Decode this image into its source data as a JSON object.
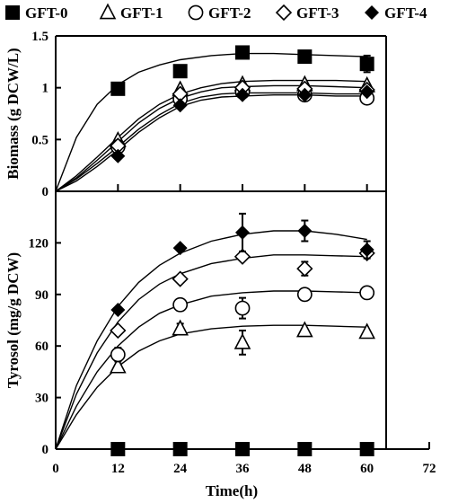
{
  "chart_data": {
    "type": "scatter",
    "legend": {
      "placement": "top",
      "entries": [
        {
          "series": "GFT-0",
          "marker": "filled-square",
          "label": "GFT-0"
        },
        {
          "series": "GFT-1",
          "marker": "open-triangle",
          "label": "GFT-1"
        },
        {
          "series": "GFT-2",
          "marker": "open-circle",
          "label": "GFT-2"
        },
        {
          "series": "GFT-3",
          "marker": "open-diamond",
          "label": "GFT-3"
        },
        {
          "series": "GFT-4",
          "marker": "filled-diamond",
          "label": "GFT-4"
        }
      ]
    },
    "xlabel": "Time(h)",
    "xlim": [
      0,
      72
    ],
    "xticks": [
      "0",
      "12",
      "24",
      "36",
      "48",
      "60",
      "72"
    ],
    "panels": [
      {
        "id": "biomass",
        "ylabel": "Biomass (g DCW/L)",
        "ylim": [
          0,
          1.5
        ],
        "yticks": [
          "0",
          "0.5",
          "1",
          "1.5"
        ],
        "series": [
          {
            "name": "GFT-0",
            "marker": "filled-square",
            "points": [
              {
                "x": 12,
                "y": 0.99,
                "err": 0
              },
              {
                "x": 24,
                "y": 1.16,
                "err": 0
              },
              {
                "x": 36,
                "y": 1.34,
                "err": 0
              },
              {
                "x": 48,
                "y": 1.3,
                "err": 0
              },
              {
                "x": 60,
                "y": 1.23,
                "err": 0.08
              }
            ],
            "curve": [
              [
                0,
                0
              ],
              [
                4,
                0.52
              ],
              [
                8,
                0.84
              ],
              [
                12,
                1.03
              ],
              [
                16,
                1.15
              ],
              [
                20,
                1.22
              ],
              [
                24,
                1.27
              ],
              [
                30,
                1.31
              ],
              [
                36,
                1.33
              ],
              [
                42,
                1.33
              ],
              [
                48,
                1.32
              ],
              [
                54,
                1.31
              ],
              [
                60,
                1.3
              ]
            ]
          },
          {
            "name": "GFT-1",
            "marker": "open-triangle",
            "points": [
              {
                "x": 12,
                "y": 0.49,
                "err": 0
              },
              {
                "x": 24,
                "y": 0.98,
                "err": 0
              },
              {
                "x": 36,
                "y": 1.03,
                "err": 0
              },
              {
                "x": 48,
                "y": 1.03,
                "err": 0
              },
              {
                "x": 60,
                "y": 1.02,
                "err": 0
              }
            ],
            "curve": [
              [
                0,
                0
              ],
              [
                4,
                0.15
              ],
              [
                8,
                0.33
              ],
              [
                12,
                0.52
              ],
              [
                16,
                0.7
              ],
              [
                20,
                0.84
              ],
              [
                24,
                0.94
              ],
              [
                28,
                1.0
              ],
              [
                32,
                1.04
              ],
              [
                36,
                1.06
              ],
              [
                42,
                1.07
              ],
              [
                48,
                1.07
              ],
              [
                54,
                1.07
              ],
              [
                60,
                1.06
              ]
            ]
          },
          {
            "name": "GFT-2",
            "marker": "open-circle",
            "points": [
              {
                "x": 12,
                "y": 0.43,
                "err": 0
              },
              {
                "x": 24,
                "y": 0.89,
                "err": 0
              },
              {
                "x": 36,
                "y": 0.96,
                "err": 0
              },
              {
                "x": 48,
                "y": 0.93,
                "err": 0
              },
              {
                "x": 60,
                "y": 0.9,
                "err": 0
              }
            ],
            "curve": [
              [
                0,
                0
              ],
              [
                4,
                0.12
              ],
              [
                8,
                0.27
              ],
              [
                12,
                0.43
              ],
              [
                16,
                0.6
              ],
              [
                20,
                0.74
              ],
              [
                24,
                0.85
              ],
              [
                28,
                0.91
              ],
              [
                32,
                0.94
              ],
              [
                36,
                0.95
              ],
              [
                42,
                0.95
              ],
              [
                48,
                0.95
              ],
              [
                54,
                0.94
              ],
              [
                60,
                0.94
              ]
            ]
          },
          {
            "name": "GFT-3",
            "marker": "open-diamond",
            "points": [
              {
                "x": 12,
                "y": 0.44,
                "err": 0
              },
              {
                "x": 24,
                "y": 0.94,
                "err": 0
              },
              {
                "x": 36,
                "y": 1.0,
                "err": 0
              },
              {
                "x": 48,
                "y": 0.99,
                "err": 0
              },
              {
                "x": 60,
                "y": 0.98,
                "err": 0
              }
            ],
            "curve": [
              [
                0,
                0
              ],
              [
                4,
                0.13
              ],
              [
                8,
                0.3
              ],
              [
                12,
                0.48
              ],
              [
                16,
                0.66
              ],
              [
                20,
                0.8
              ],
              [
                24,
                0.9
              ],
              [
                28,
                0.96
              ],
              [
                32,
                1.0
              ],
              [
                36,
                1.01
              ],
              [
                42,
                1.02
              ],
              [
                48,
                1.02
              ],
              [
                54,
                1.01
              ],
              [
                60,
                1.0
              ]
            ]
          },
          {
            "name": "GFT-4",
            "marker": "filled-diamond",
            "points": [
              {
                "x": 12,
                "y": 0.34,
                "err": 0
              },
              {
                "x": 24,
                "y": 0.83,
                "err": 0
              },
              {
                "x": 36,
                "y": 0.93,
                "err": 0
              },
              {
                "x": 48,
                "y": 0.93,
                "err": 0
              },
              {
                "x": 60,
                "y": 0.96,
                "err": 0
              }
            ],
            "curve": [
              [
                0,
                0
              ],
              [
                4,
                0.1
              ],
              [
                8,
                0.24
              ],
              [
                12,
                0.4
              ],
              [
                16,
                0.57
              ],
              [
                20,
                0.71
              ],
              [
                24,
                0.82
              ],
              [
                28,
                0.88
              ],
              [
                32,
                0.91
              ],
              [
                36,
                0.92
              ],
              [
                42,
                0.93
              ],
              [
                48,
                0.93
              ],
              [
                54,
                0.92
              ],
              [
                60,
                0.92
              ]
            ]
          }
        ]
      },
      {
        "id": "tyrosol",
        "ylabel": "Tyrosol (mg/g DCW)",
        "ylim": [
          0,
          150
        ],
        "yticks": [
          "0",
          "30",
          "60",
          "90",
          "120"
        ],
        "series": [
          {
            "name": "GFT-0",
            "marker": "filled-square",
            "points": [
              {
                "x": 12,
                "y": 0,
                "err": 0
              },
              {
                "x": 24,
                "y": 0,
                "err": 0
              },
              {
                "x": 36,
                "y": 0,
                "err": 0
              },
              {
                "x": 48,
                "y": 0,
                "err": 0
              },
              {
                "x": 60,
                "y": 0,
                "err": 0
              }
            ],
            "curve": []
          },
          {
            "name": "GFT-1",
            "marker": "open-triangle",
            "points": [
              {
                "x": 12,
                "y": 48,
                "err": 0
              },
              {
                "x": 24,
                "y": 70,
                "err": 3
              },
              {
                "x": 36,
                "y": 62,
                "err": 7
              },
              {
                "x": 48,
                "y": 69,
                "err": 0
              },
              {
                "x": 60,
                "y": 68,
                "err": 0
              }
            ],
            "curve": [
              [
                0,
                0
              ],
              [
                4,
                20
              ],
              [
                8,
                36
              ],
              [
                12,
                48
              ],
              [
                16,
                57
              ],
              [
                20,
                63
              ],
              [
                24,
                67
              ],
              [
                30,
                70
              ],
              [
                36,
                71.5
              ],
              [
                42,
                72
              ],
              [
                48,
                72
              ],
              [
                54,
                71.5
              ],
              [
                60,
                71
              ]
            ]
          },
          {
            "name": "GFT-2",
            "marker": "open-circle",
            "points": [
              {
                "x": 12,
                "y": 55,
                "err": 4
              },
              {
                "x": 24,
                "y": 84,
                "err": 0
              },
              {
                "x": 36,
                "y": 82,
                "err": 6
              },
              {
                "x": 48,
                "y": 90,
                "err": 0
              },
              {
                "x": 60,
                "y": 91,
                "err": 0
              }
            ],
            "curve": [
              [
                0,
                0
              ],
              [
                4,
                25
              ],
              [
                8,
                45
              ],
              [
                12,
                60
              ],
              [
                16,
                71
              ],
              [
                20,
                79
              ],
              [
                24,
                84
              ],
              [
                30,
                89
              ],
              [
                36,
                91
              ],
              [
                42,
                92
              ],
              [
                48,
                92
              ],
              [
                54,
                91.5
              ],
              [
                60,
                91
              ]
            ]
          },
          {
            "name": "GFT-3",
            "marker": "open-diamond",
            "points": [
              {
                "x": 12,
                "y": 69,
                "err": 0
              },
              {
                "x": 24,
                "y": 99,
                "err": 0
              },
              {
                "x": 36,
                "y": 112,
                "err": 0
              },
              {
                "x": 48,
                "y": 105,
                "err": 4
              },
              {
                "x": 60,
                "y": 114,
                "err": 0
              }
            ],
            "curve": [
              [
                0,
                0
              ],
              [
                4,
                32
              ],
              [
                8,
                56
              ],
              [
                12,
                74
              ],
              [
                16,
                87
              ],
              [
                20,
                96
              ],
              [
                24,
                102
              ],
              [
                30,
                108
              ],
              [
                36,
                111
              ],
              [
                42,
                113
              ],
              [
                48,
                113
              ],
              [
                54,
                112.5
              ],
              [
                60,
                112
              ]
            ]
          },
          {
            "name": "GFT-4",
            "marker": "filled-diamond",
            "points": [
              {
                "x": 12,
                "y": 81,
                "err": 0
              },
              {
                "x": 24,
                "y": 117,
                "err": 0
              },
              {
                "x": 36,
                "y": 126,
                "err": 11
              },
              {
                "x": 48,
                "y": 127,
                "err": 6
              },
              {
                "x": 60,
                "y": 116,
                "err": 5
              }
            ],
            "curve": [
              [
                0,
                0
              ],
              [
                4,
                37
              ],
              [
                8,
                63
              ],
              [
                12,
                83
              ],
              [
                16,
                97
              ],
              [
                20,
                107
              ],
              [
                24,
                114
              ],
              [
                30,
                121
              ],
              [
                36,
                125
              ],
              [
                42,
                127
              ],
              [
                48,
                127
              ],
              [
                54,
                125
              ],
              [
                60,
                122
              ]
            ]
          }
        ]
      }
    ]
  }
}
